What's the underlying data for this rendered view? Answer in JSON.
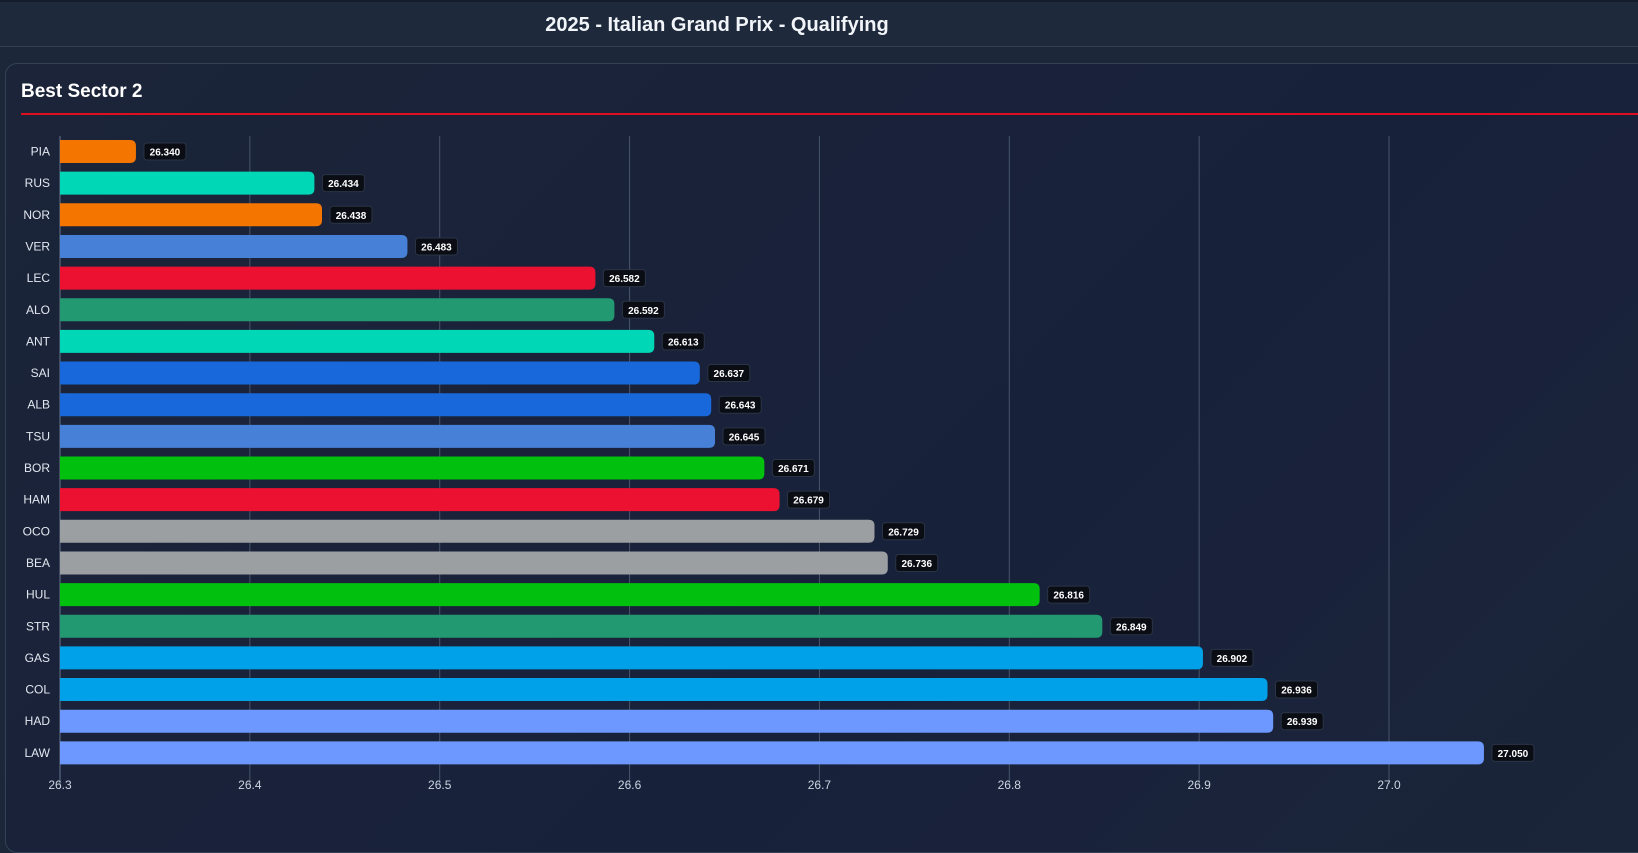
{
  "header": {
    "title": "2025 - Italian Grand Prix - Qualifying"
  },
  "card": {
    "title": "Best Sector 2",
    "accent_color": "#e10e1f"
  },
  "chart_data": {
    "type": "bar",
    "orientation": "horizontal",
    "title": "Best Sector 2",
    "xlabel": "",
    "ylabel": "",
    "xlim": [
      26.3,
      27.08
    ],
    "xticks": [
      "26.3",
      "26.4",
      "26.5",
      "26.6",
      "26.7",
      "26.8",
      "26.9",
      "27.0"
    ],
    "grid": true,
    "categories": [
      "PIA",
      "RUS",
      "NOR",
      "VER",
      "LEC",
      "ALO",
      "ANT",
      "SAI",
      "ALB",
      "TSU",
      "BOR",
      "HAM",
      "OCO",
      "BEA",
      "HUL",
      "STR",
      "GAS",
      "COL",
      "HAD",
      "LAW"
    ],
    "values": [
      26.34,
      26.434,
      26.438,
      26.483,
      26.582,
      26.592,
      26.613,
      26.637,
      26.643,
      26.645,
      26.671,
      26.679,
      26.729,
      26.736,
      26.816,
      26.849,
      26.902,
      26.936,
      26.939,
      27.05
    ],
    "labels": [
      "26.340",
      "26.434",
      "26.438",
      "26.483",
      "26.582",
      "26.592",
      "26.613",
      "26.637",
      "26.643",
      "26.645",
      "26.671",
      "26.679",
      "26.729",
      "26.736",
      "26.816",
      "26.849",
      "26.902",
      "26.936",
      "26.939",
      "27.050"
    ],
    "colors": [
      "#f47600",
      "#00d7b6",
      "#f47600",
      "#4781d7",
      "#ed1131",
      "#229971",
      "#00d7b6",
      "#1868db",
      "#1868db",
      "#4781d7",
      "#01c00e",
      "#ed1131",
      "#9c9fa2",
      "#9c9fa2",
      "#01c00e",
      "#229971",
      "#00a1e8",
      "#00a1e8",
      "#6c98ff",
      "#6c98ff"
    ]
  }
}
